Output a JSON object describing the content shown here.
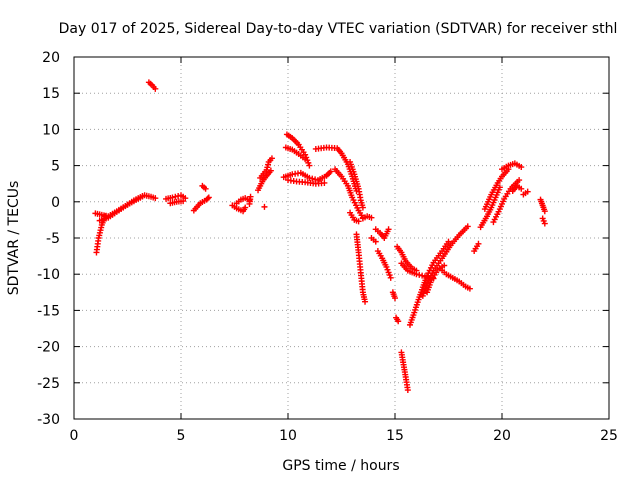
{
  "chart_data": {
    "type": "scatter",
    "title": "Day 017 of 2025, Sidereal Day-to-day VTEC variation (SDTVAR) for receiver sthl",
    "xlabel": "GPS time / hours",
    "ylabel": "SDTVAR / TECUs",
    "xlim": [
      0,
      25
    ],
    "ylim": [
      -30,
      20
    ],
    "xticks": [
      0,
      5,
      10,
      15,
      20,
      25
    ],
    "yticks": [
      -30,
      -25,
      -20,
      -15,
      -10,
      -5,
      0,
      5,
      10,
      15,
      20
    ],
    "grid": true,
    "marker": "+",
    "color": "#ff0000",
    "segments": [
      {
        "name": "arc-01",
        "points": [
          [
            1.05,
            -7.0
          ],
          [
            1.15,
            -5.0
          ],
          [
            1.3,
            -3.2
          ],
          [
            1.45,
            -2.0
          ]
        ]
      },
      {
        "name": "arc-02",
        "points": [
          [
            1.0,
            -1.6
          ],
          [
            1.3,
            -1.8
          ],
          [
            1.6,
            -2.0
          ],
          [
            2.0,
            -1.3
          ],
          [
            2.5,
            -0.4
          ],
          [
            3.0,
            0.4
          ],
          [
            3.3,
            0.9
          ],
          [
            3.6,
            0.7
          ],
          [
            3.8,
            0.5
          ]
        ]
      },
      {
        "name": "arc-03",
        "points": [
          [
            1.2,
            -2.6
          ],
          [
            1.6,
            -2.2
          ],
          [
            2.0,
            -1.4
          ],
          [
            2.4,
            -0.6
          ],
          [
            2.8,
            0.2
          ],
          [
            3.2,
            0.8
          ]
        ]
      },
      {
        "name": "arc-04",
        "points": [
          [
            3.5,
            16.5
          ],
          [
            3.65,
            16.1
          ],
          [
            3.8,
            15.6
          ]
        ]
      },
      {
        "name": "arc-05",
        "points": [
          [
            4.3,
            0.4
          ],
          [
            4.6,
            0.6
          ],
          [
            5.0,
            0.9
          ],
          [
            5.2,
            0.5
          ]
        ]
      },
      {
        "name": "arc-06",
        "points": [
          [
            4.5,
            -0.2
          ],
          [
            4.8,
            0.0
          ],
          [
            5.1,
            0.1
          ]
        ]
      },
      {
        "name": "arc-07",
        "points": [
          [
            5.6,
            -1.2
          ],
          [
            5.9,
            -0.2
          ],
          [
            6.2,
            0.3
          ],
          [
            6.3,
            0.6
          ]
        ]
      },
      {
        "name": "arc-08",
        "points": [
          [
            6.0,
            2.2
          ],
          [
            6.15,
            1.8
          ]
        ]
      },
      {
        "name": "arc-09",
        "points": [
          [
            7.4,
            -0.5
          ],
          [
            7.6,
            -0.9
          ],
          [
            7.9,
            -1.3
          ],
          [
            8.0,
            -0.8
          ]
        ]
      },
      {
        "name": "arc-10",
        "points": [
          [
            7.6,
            -0.2
          ],
          [
            7.8,
            0.3
          ],
          [
            8.0,
            0.5
          ],
          [
            8.2,
            0.2
          ]
        ]
      },
      {
        "name": "arc-11",
        "points": [
          [
            8.2,
            -0.3
          ],
          [
            8.25,
            0.7
          ]
        ]
      },
      {
        "name": "arc-12",
        "points": [
          [
            8.9,
            -0.7
          ]
        ]
      },
      {
        "name": "arc-13",
        "points": [
          [
            8.6,
            1.6
          ],
          [
            8.8,
            2.8
          ],
          [
            9.0,
            3.6
          ],
          [
            9.2,
            4.3
          ]
        ]
      },
      {
        "name": "arc-14",
        "points": [
          [
            8.7,
            3.3
          ],
          [
            9.0,
            4.4
          ],
          [
            9.1,
            5.5
          ],
          [
            9.25,
            6.0
          ]
        ]
      },
      {
        "name": "arc-15",
        "points": [
          [
            9.95,
            9.3
          ],
          [
            10.2,
            8.8
          ],
          [
            10.5,
            7.9
          ],
          [
            10.8,
            6.5
          ],
          [
            11.0,
            5.0
          ]
        ]
      },
      {
        "name": "arc-16",
        "points": [
          [
            9.9,
            7.5
          ],
          [
            10.2,
            7.2
          ],
          [
            10.5,
            6.6
          ],
          [
            10.8,
            5.9
          ]
        ]
      },
      {
        "name": "arc-17",
        "points": [
          [
            9.8,
            3.4
          ],
          [
            10.2,
            3.8
          ],
          [
            10.6,
            4.0
          ],
          [
            11.0,
            3.3
          ],
          [
            11.4,
            3.0
          ],
          [
            11.8,
            3.6
          ],
          [
            12.0,
            4.2
          ]
        ]
      },
      {
        "name": "arc-18",
        "points": [
          [
            10.0,
            3.0
          ],
          [
            10.4,
            2.8
          ],
          [
            10.8,
            2.7
          ],
          [
            11.3,
            2.5
          ],
          [
            11.7,
            2.6
          ]
        ]
      },
      {
        "name": "arc-19",
        "points": [
          [
            11.3,
            7.3
          ],
          [
            11.8,
            7.5
          ],
          [
            12.3,
            7.4
          ],
          [
            12.5,
            6.7
          ],
          [
            12.8,
            5.2
          ],
          [
            13.0,
            3.5
          ],
          [
            13.2,
            1.5
          ]
        ]
      },
      {
        "name": "arc-20",
        "points": [
          [
            12.2,
            4.5
          ],
          [
            12.5,
            3.5
          ],
          [
            12.8,
            2.2
          ],
          [
            13.0,
            0.6
          ],
          [
            13.3,
            -1.2
          ],
          [
            13.5,
            -2.2
          ]
        ]
      },
      {
        "name": "arc-21",
        "points": [
          [
            12.9,
            5.5
          ],
          [
            13.1,
            3.8
          ],
          [
            13.3,
            1.8
          ],
          [
            13.4,
            0.2
          ],
          [
            13.5,
            -0.8
          ]
        ]
      },
      {
        "name": "arc-22",
        "points": [
          [
            12.9,
            -1.5
          ],
          [
            13.1,
            -2.5
          ],
          [
            13.3,
            -2.7
          ]
        ]
      },
      {
        "name": "arc-23",
        "points": [
          [
            13.2,
            -4.5
          ],
          [
            13.3,
            -7.0
          ],
          [
            13.4,
            -9.8
          ],
          [
            13.5,
            -12.5
          ],
          [
            13.6,
            -13.8
          ]
        ]
      },
      {
        "name": "arc-24",
        "points": [
          [
            13.5,
            -2.3
          ],
          [
            13.7,
            -2.0
          ],
          [
            13.9,
            -2.2
          ]
        ]
      },
      {
        "name": "arc-25",
        "points": [
          [
            13.9,
            -5.0
          ],
          [
            14.1,
            -5.5
          ]
        ]
      },
      {
        "name": "arc-26",
        "points": [
          [
            14.1,
            -3.8
          ],
          [
            14.3,
            -4.3
          ],
          [
            14.5,
            -5.0
          ],
          [
            14.7,
            -3.8
          ]
        ]
      },
      {
        "name": "arc-27",
        "points": [
          [
            14.2,
            -6.8
          ],
          [
            14.4,
            -7.8
          ],
          [
            14.6,
            -9.0
          ],
          [
            14.8,
            -10.5
          ]
        ]
      },
      {
        "name": "arc-28",
        "points": [
          [
            14.9,
            -12.5
          ],
          [
            15.0,
            -13.3
          ]
        ]
      },
      {
        "name": "arc-29",
        "points": [
          [
            15.05,
            -16.0
          ],
          [
            15.15,
            -16.5
          ]
        ]
      },
      {
        "name": "arc-30",
        "points": [
          [
            15.1,
            -6.2
          ],
          [
            15.3,
            -7.0
          ],
          [
            15.5,
            -8.2
          ],
          [
            15.8,
            -9.2
          ],
          [
            16.0,
            -9.5
          ]
        ]
      },
      {
        "name": "arc-31",
        "points": [
          [
            15.3,
            -8.5
          ],
          [
            15.6,
            -9.5
          ],
          [
            16.0,
            -10.0
          ],
          [
            16.4,
            -10.3
          ],
          [
            16.8,
            -10.6
          ]
        ]
      },
      {
        "name": "arc-32",
        "points": [
          [
            15.3,
            -20.8
          ],
          [
            15.4,
            -22.5
          ],
          [
            15.5,
            -24.2
          ],
          [
            15.6,
            -26.0
          ]
        ]
      },
      {
        "name": "arc-33",
        "points": [
          [
            15.7,
            -17.0
          ],
          [
            15.9,
            -15.3
          ],
          [
            16.1,
            -13.5
          ],
          [
            16.3,
            -11.8
          ],
          [
            16.5,
            -10.2
          ],
          [
            16.8,
            -8.4
          ],
          [
            17.2,
            -6.8
          ],
          [
            17.5,
            -5.5
          ]
        ]
      },
      {
        "name": "arc-34",
        "points": [
          [
            16.3,
            -13.0
          ],
          [
            16.5,
            -11.3
          ],
          [
            16.8,
            -9.5
          ],
          [
            17.2,
            -7.8
          ],
          [
            17.6,
            -6.0
          ],
          [
            18.0,
            -4.6
          ],
          [
            18.4,
            -3.4
          ]
        ]
      },
      {
        "name": "arc-35",
        "points": [
          [
            16.5,
            -12.5
          ],
          [
            16.7,
            -10.8
          ],
          [
            17.0,
            -9.4
          ],
          [
            17.3,
            -8.8
          ]
        ]
      },
      {
        "name": "arc-36",
        "points": [
          [
            17.1,
            -9.2
          ],
          [
            17.4,
            -10.0
          ],
          [
            17.7,
            -10.5
          ],
          [
            18.0,
            -11.0
          ],
          [
            18.3,
            -11.7
          ],
          [
            18.5,
            -12.0
          ]
        ]
      },
      {
        "name": "arc-37",
        "points": [
          [
            18.7,
            -6.8
          ],
          [
            18.9,
            -5.8
          ]
        ]
      },
      {
        "name": "arc-38",
        "points": [
          [
            19.0,
            -3.5
          ],
          [
            19.3,
            -2.0
          ],
          [
            19.5,
            -0.8
          ],
          [
            19.7,
            0.6
          ],
          [
            19.9,
            2.0
          ]
        ]
      },
      {
        "name": "arc-39",
        "points": [
          [
            19.2,
            -1.0
          ],
          [
            19.5,
            1.0
          ],
          [
            19.8,
            2.6
          ],
          [
            20.0,
            3.5
          ],
          [
            20.3,
            4.5
          ]
        ]
      },
      {
        "name": "arc-40",
        "points": [
          [
            19.6,
            -2.8
          ],
          [
            19.9,
            -1.0
          ],
          [
            20.1,
            0.4
          ],
          [
            20.4,
            1.8
          ],
          [
            20.8,
            3.0
          ]
        ]
      },
      {
        "name": "arc-41",
        "points": [
          [
            20.0,
            4.5
          ],
          [
            20.3,
            5.0
          ],
          [
            20.6,
            5.3
          ],
          [
            20.9,
            4.8
          ]
        ]
      },
      {
        "name": "arc-42",
        "points": [
          [
            20.5,
            1.5
          ],
          [
            20.7,
            2.2
          ],
          [
            20.9,
            1.8
          ]
        ]
      },
      {
        "name": "arc-43",
        "points": [
          [
            21.0,
            1.0
          ],
          [
            21.2,
            1.4
          ]
        ]
      },
      {
        "name": "arc-44",
        "points": [
          [
            21.8,
            0.3
          ],
          [
            21.9,
            -0.5
          ],
          [
            22.0,
            -1.3
          ]
        ]
      },
      {
        "name": "arc-45",
        "points": [
          [
            21.9,
            -2.3
          ],
          [
            22.0,
            -3.0
          ]
        ]
      }
    ]
  }
}
